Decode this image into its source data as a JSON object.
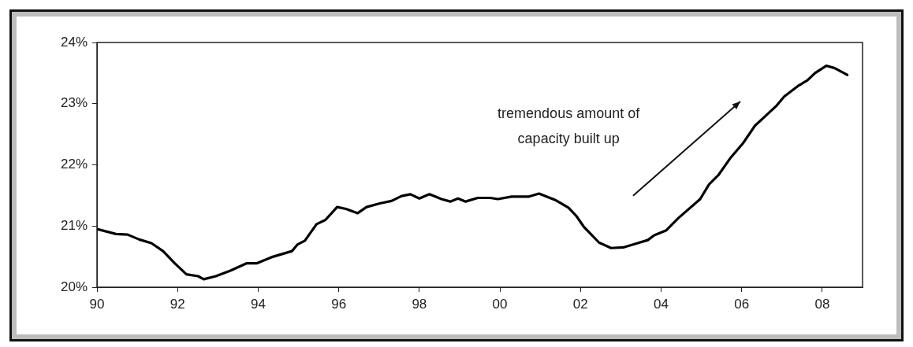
{
  "chart_data": {
    "type": "line",
    "x": [
      1990.0,
      1990.47,
      1990.76,
      1991.05,
      1991.35,
      1991.64,
      1991.93,
      1992.22,
      1992.51,
      1992.65,
      1992.95,
      1993.31,
      1993.71,
      1993.96,
      1994.33,
      1994.84,
      1994.98,
      1995.16,
      1995.45,
      1995.67,
      1995.96,
      1996.18,
      1996.47,
      1996.69,
      1997.02,
      1997.31,
      1997.56,
      1997.78,
      1998.0,
      1998.25,
      1998.55,
      1998.77,
      1998.96,
      1999.15,
      1999.45,
      1999.76,
      1999.95,
      2000.29,
      2000.71,
      2000.97,
      2001.39,
      2001.7,
      2001.89,
      2002.08,
      2002.46,
      2002.76,
      2003.06,
      2003.37,
      2003.67,
      2003.83,
      2004.13,
      2004.43,
      2004.97,
      2005.19,
      2005.42,
      2005.73,
      2006.03,
      2006.33,
      2006.56,
      2006.87,
      2007.06,
      2007.4,
      2007.63,
      2007.82,
      2008.1,
      2008.31,
      2008.62
    ],
    "series": [
      {
        "color": "#000000",
        "values": [
          20.95,
          20.87,
          20.86,
          20.78,
          20.72,
          20.59,
          20.39,
          20.21,
          20.18,
          20.13,
          20.18,
          20.27,
          20.39,
          20.39,
          20.49,
          20.59,
          20.7,
          20.76,
          21.03,
          21.1,
          21.31,
          21.28,
          21.21,
          21.31,
          21.37,
          21.41,
          21.49,
          21.52,
          21.45,
          21.52,
          21.44,
          21.4,
          21.45,
          21.4,
          21.46,
          21.46,
          21.44,
          21.48,
          21.48,
          21.53,
          21.42,
          21.3,
          21.17,
          20.99,
          20.73,
          20.64,
          20.65,
          20.71,
          20.77,
          20.85,
          20.93,
          21.13,
          21.44,
          21.68,
          21.83,
          22.12,
          22.35,
          22.64,
          22.78,
          22.97,
          23.12,
          23.29,
          23.38,
          23.5,
          23.62,
          23.58,
          23.47
        ]
      }
    ],
    "xlim": [
      1990,
      2009
    ],
    "xticks": [
      {
        "value": 1990,
        "label": "90"
      },
      {
        "value": 1992,
        "label": "92"
      },
      {
        "value": 1994,
        "label": "94"
      },
      {
        "value": 1996,
        "label": "96"
      },
      {
        "value": 1998,
        "label": "98"
      },
      {
        "value": 2000,
        "label": "00"
      },
      {
        "value": 2002,
        "label": "02"
      },
      {
        "value": 2004,
        "label": "04"
      },
      {
        "value": 2006,
        "label": "06"
      },
      {
        "value": 2008,
        "label": "08"
      }
    ],
    "ylim": [
      20,
      24
    ],
    "yticks": [
      {
        "value": 20,
        "label": "20%"
      },
      {
        "value": 21,
        "label": "21%"
      },
      {
        "value": 22,
        "label": "22%"
      },
      {
        "value": 23,
        "label": "23%"
      },
      {
        "value": 24,
        "label": "24%"
      }
    ],
    "grid": false,
    "legend": false,
    "marker": "none",
    "line_style": "solid",
    "annotations": [
      "tremendous amount of\ncapacity built up"
    ]
  }
}
